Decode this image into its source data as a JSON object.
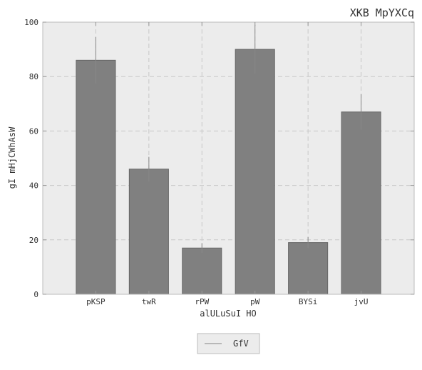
{
  "chart_data": {
    "type": "bar",
    "title": "XKB MpYXCq",
    "xlabel": "alULuSuI HO",
    "ylabel": "gI mHjCWhAsW",
    "categories": [
      "pKSP",
      "twR",
      "rPW",
      "pW",
      "BYSi",
      "jvU"
    ],
    "series": [
      {
        "name": "GfV",
        "values": [
          86,
          46,
          17,
          90,
          19,
          67
        ],
        "error": [
          8.5,
          4.5,
          1.8,
          9.0,
          2.0,
          6.5
        ]
      }
    ],
    "ylim": [
      0,
      100
    ],
    "yticks": [
      0,
      20,
      40,
      60,
      80,
      100
    ],
    "grid": true,
    "legend_position": "bottom-center",
    "colors": {
      "bar": "#808080",
      "bar_edge": "#666666",
      "error_bar": "#888888",
      "plot_background": "#ececec",
      "grid": "#c8c8c8"
    }
  }
}
